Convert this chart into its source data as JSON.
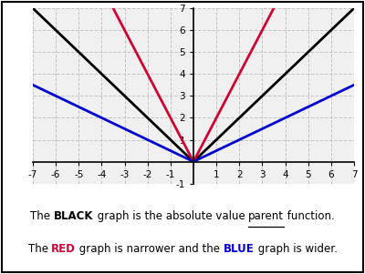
{
  "x_min": -7,
  "x_max": 7,
  "y_min": -1,
  "y_max": 7,
  "x_ticks": [
    -7,
    -6,
    -5,
    -4,
    -3,
    -2,
    -1,
    0,
    1,
    2,
    3,
    4,
    5,
    6,
    7
  ],
  "y_ticks_main": [
    -1,
    1,
    2,
    3,
    4,
    5,
    6,
    7
  ],
  "y_tick_labels": [
    "-1",
    "1",
    "2",
    "3",
    "4",
    "5",
    "6",
    "7"
  ],
  "black_slope": 1.0,
  "red_slope": 2.0,
  "blue_slope": 0.5,
  "black_color": "#000000",
  "red_color": "#cc0033",
  "blue_color": "#0000cc",
  "line_width": 2.0,
  "grid_color": "#c0c0c0",
  "plot_bg_color": "#f0f0f0",
  "annotation_bg": "#ffffcc",
  "fig_width": 4.0,
  "fig_height": 3.01,
  "fontsize": 8.5
}
